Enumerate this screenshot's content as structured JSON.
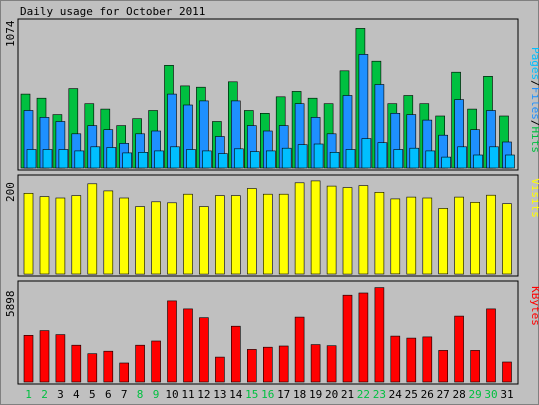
{
  "chart_data": [
    {
      "type": "bar",
      "title": "Daily usage for October 2011",
      "max_label": "1074",
      "legend": [
        "Pages",
        "Files",
        "Hits"
      ],
      "legend_separator": "/",
      "categories": [
        "1",
        "2",
        "3",
        "4",
        "5",
        "6",
        "7",
        "8",
        "9",
        "10",
        "11",
        "12",
        "13",
        "14",
        "15",
        "16",
        "17",
        "18",
        "19",
        "20",
        "21",
        "22",
        "23",
        "24",
        "25",
        "26",
        "27",
        "28",
        "29",
        "30",
        "31"
      ],
      "weekend_days": [
        "1",
        "2",
        "8",
        "9",
        "15",
        "16",
        "22",
        "23",
        "29",
        "30"
      ],
      "ylim": [
        0,
        1074
      ],
      "series": [
        {
          "name": "Hits",
          "color": "#00c040",
          "values": [
            540,
            510,
            390,
            580,
            470,
            430,
            310,
            360,
            420,
            750,
            600,
            590,
            340,
            630,
            420,
            400,
            520,
            560,
            510,
            470,
            710,
            1020,
            780,
            470,
            530,
            470,
            380,
            700,
            430,
            670,
            380
          ]
        },
        {
          "name": "Files",
          "color": "#1e90ff",
          "values": [
            420,
            370,
            340,
            250,
            310,
            280,
            180,
            250,
            270,
            540,
            460,
            490,
            230,
            490,
            310,
            270,
            310,
            470,
            370,
            250,
            530,
            830,
            610,
            400,
            390,
            350,
            240,
            500,
            280,
            420,
            190
          ]
        },
        {
          "name": "Pages",
          "color": "#00bfff",
          "values": [
            135,
            135,
            135,
            125,
            155,
            150,
            110,
            115,
            125,
            155,
            135,
            125,
            105,
            140,
            120,
            125,
            145,
            170,
            175,
            115,
            135,
            215,
            185,
            135,
            145,
            125,
            80,
            155,
            95,
            155,
            95
          ]
        }
      ]
    },
    {
      "type": "bar",
      "max_label": "200",
      "legend": [
        "Visits"
      ],
      "ylim": [
        0,
        200
      ],
      "series": [
        {
          "name": "Visits",
          "color": "#ffff00",
          "values": [
            170,
            163,
            160,
            165,
            190,
            175,
            160,
            142,
            152,
            150,
            168,
            142,
            165,
            165,
            180,
            168,
            168,
            192,
            196,
            185,
            182,
            186,
            172,
            158,
            162,
            160,
            138,
            162,
            151,
            166,
            148
          ]
        }
      ]
    },
    {
      "type": "bar",
      "max_label": "5898",
      "legend": [
        "KBytes"
      ],
      "ylim": [
        0,
        5898
      ],
      "series": [
        {
          "name": "KBytes",
          "color": "#ff0000",
          "values": [
            2870,
            3160,
            2910,
            2260,
            1740,
            1890,
            1170,
            2260,
            2520,
            4980,
            4490,
            3950,
            1530,
            3430,
            2000,
            2140,
            2210,
            3990,
            2300,
            2230,
            5330,
            5470,
            5800,
            2820,
            2700,
            2770,
            1940,
            4050,
            1940,
            4490,
            1230
          ]
        }
      ]
    }
  ]
}
